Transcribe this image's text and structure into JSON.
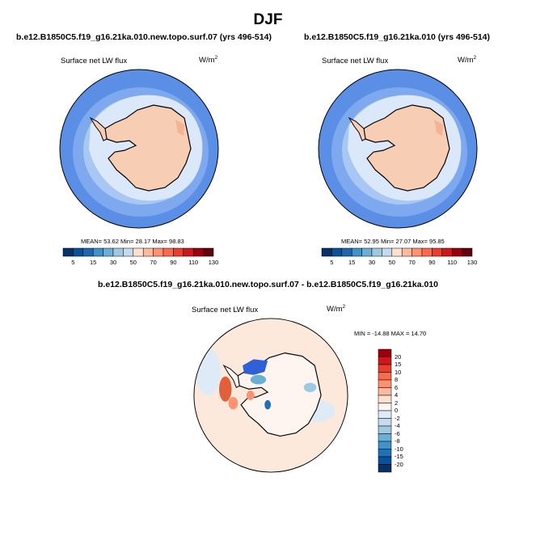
{
  "page": {
    "title": "DJF",
    "diff_title": "b.e12.B1850C5.f19_g16.21ka.010.new.topo.surf.07 - b.e12.B1850C5.f19_g16.21ka.010"
  },
  "panels": [
    {
      "case_title": "b.e12.B1850C5.f19_g16.21ka.010.new.topo.surf.07 (yrs 496-514)",
      "variable": "Surface net LW flux",
      "unit_base": "W/m",
      "unit_exp": "2",
      "stats": "MEAN=  53.62  Min=  28.17  Max=  98.83"
    },
    {
      "case_title": "b.e12.B1850C5.f19_g16.21ka.010 (yrs 496-514)",
      "variable": "Surface net LW flux",
      "unit_base": "W/m",
      "unit_exp": "2",
      "stats": "MEAN=  52.95  Min=  27.07  Max=  95.85"
    },
    {
      "variable": "Surface net LW flux",
      "unit_base": "W/m",
      "unit_exp": "2",
      "stats": "MIN = -14.88 MAX =  14.70"
    }
  ],
  "colorbar_abs": {
    "ticks": [
      "5",
      "15",
      "30",
      "50",
      "70",
      "90",
      "110",
      "130"
    ],
    "colors": [
      "#08306b",
      "#08519c",
      "#2166ac",
      "#4292c6",
      "#6baed6",
      "#9ecae1",
      "#c6dbef",
      "#fde0cf",
      "#fcbba1",
      "#fc9272",
      "#fb6a4a",
      "#ef3b2c",
      "#cb181d",
      "#99000d",
      "#67000d"
    ]
  },
  "colorbar_diff": {
    "ticks": [
      "20",
      "15",
      "10",
      "8",
      "6",
      "4",
      "2",
      "0",
      "-2",
      "-4",
      "-6",
      "-8",
      "-10",
      "-15",
      "-20"
    ],
    "colors": [
      "#99000d",
      "#cb181d",
      "#ef3b2c",
      "#fb6a4a",
      "#fc9272",
      "#fcbba1",
      "#fde0cf",
      "#fff5f0",
      "#deebf7",
      "#c6dbef",
      "#9ecae1",
      "#6baed6",
      "#4292c6",
      "#2171b5",
      "#08519c",
      "#08306b"
    ]
  },
  "map_colors": {
    "ocean_outer": "#5b8fe6",
    "ocean_mid": "#7fa9ee",
    "ocean_inner": "#a9c7f3",
    "ice_edge": "#dbe8fa",
    "land": "#f7cdb4",
    "land_dark": "#f2b396",
    "diff_bg": "#fde9dc",
    "diff_neg": "#3060d8",
    "diff_pos": "#e0603a",
    "coast": "#000000"
  }
}
